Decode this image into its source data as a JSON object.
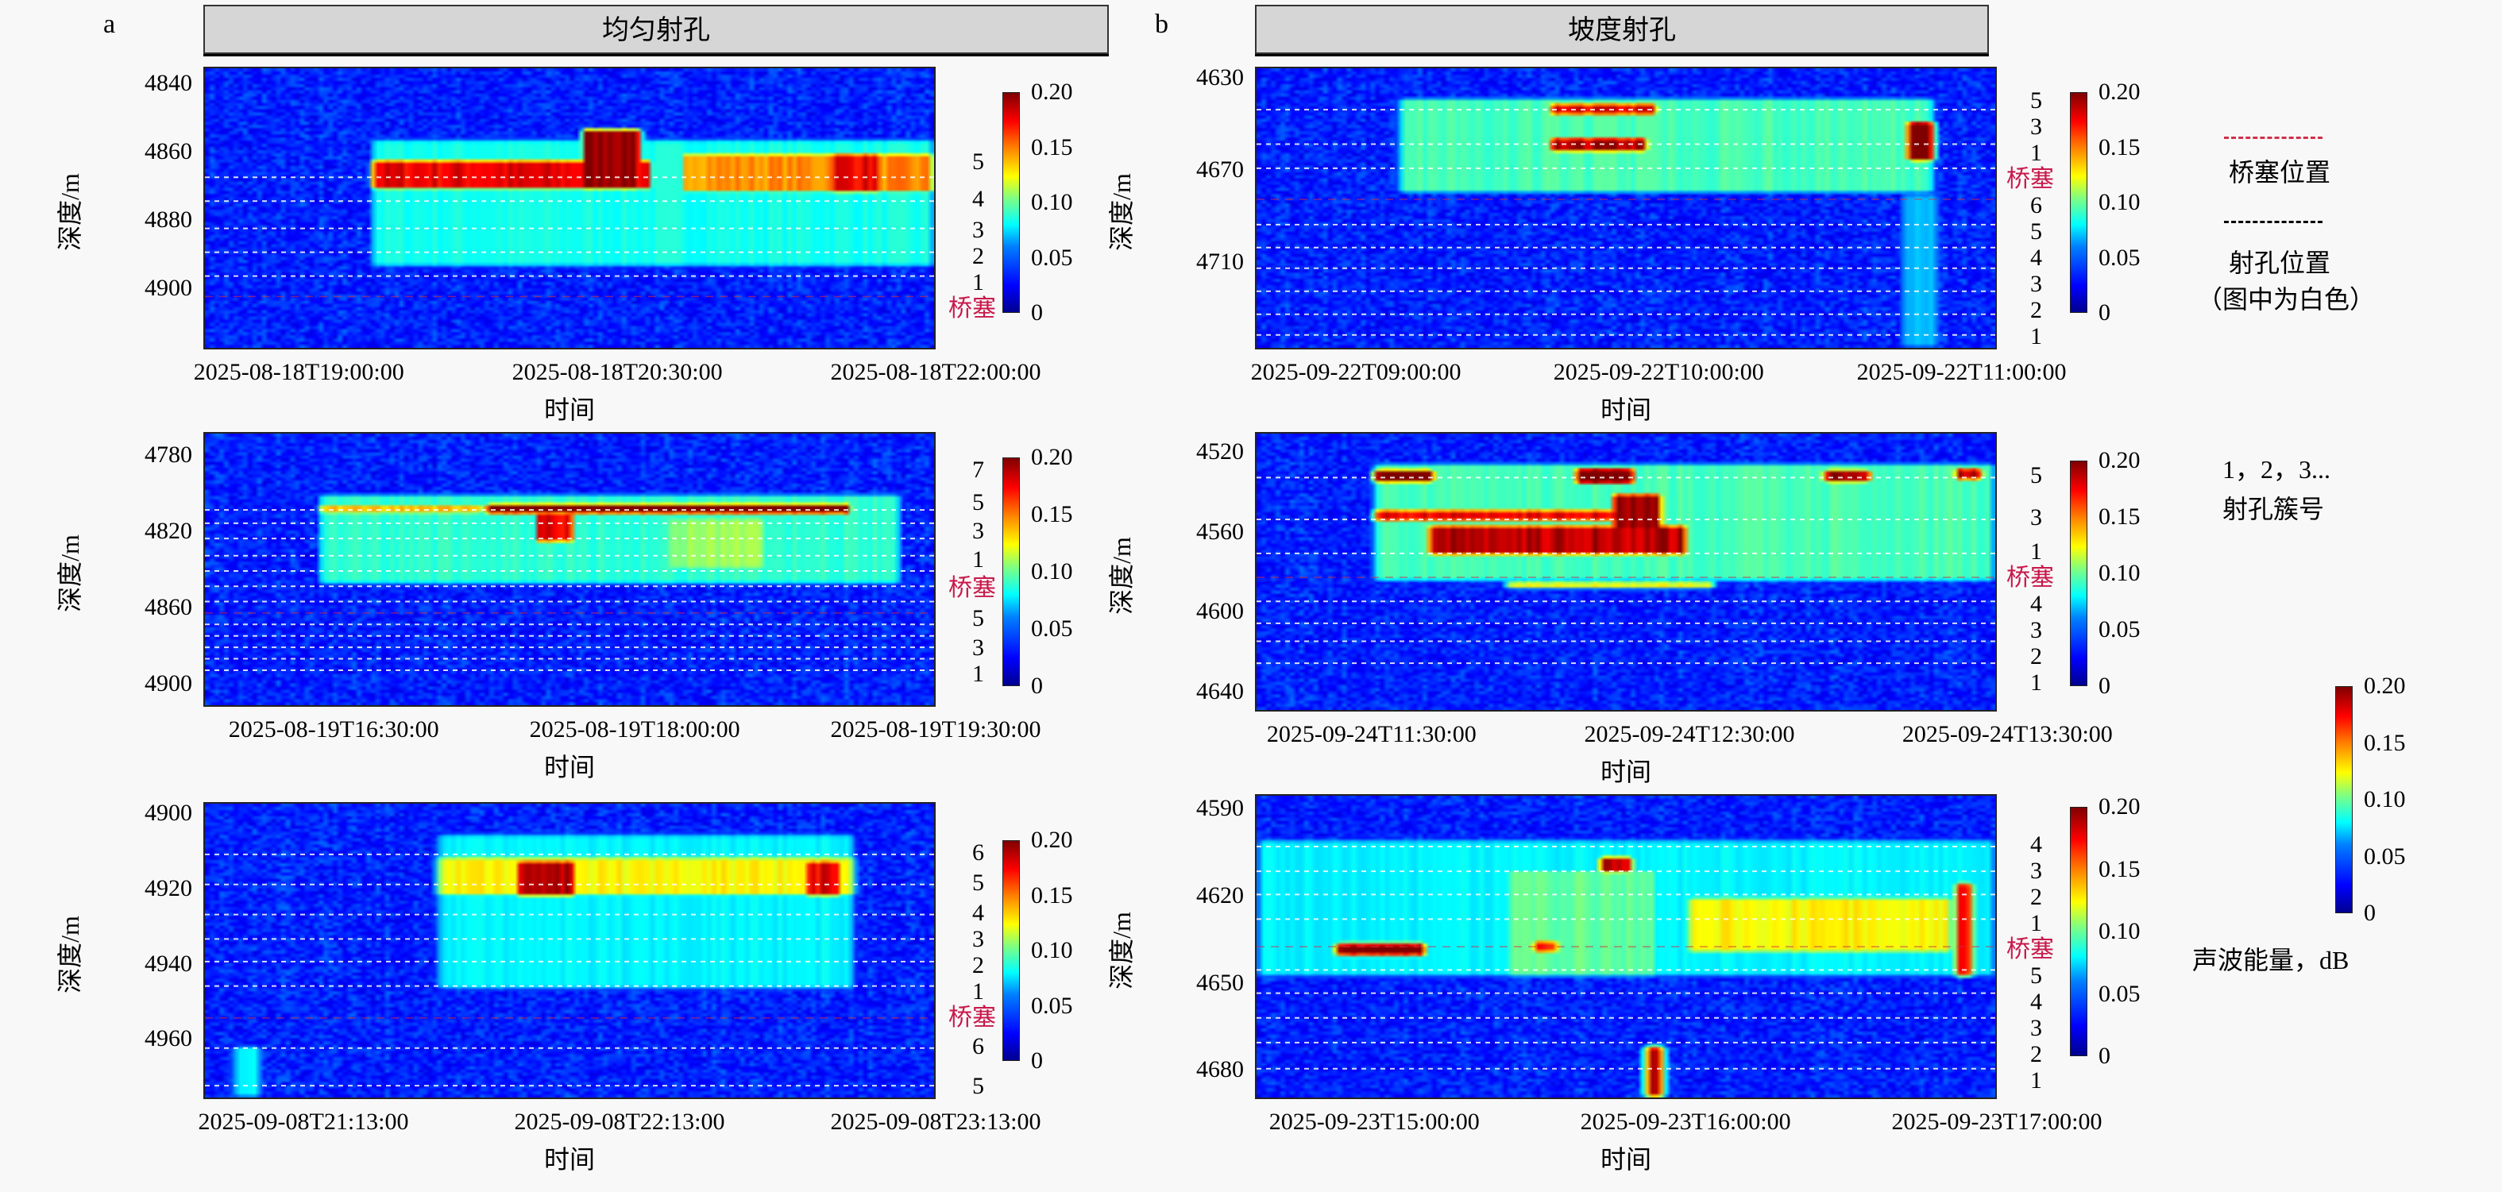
{
  "legend": {
    "plug_label": "桥塞位置",
    "perforation_label": "射孔位置",
    "perforation_note": "（图中为白色）",
    "cluster_numbers": "1，2，3...",
    "cluster_label": "射孔簇号",
    "energy_label": "声波能量，dB",
    "plug_color": "#d0304a",
    "perforation_color": "#000000"
  },
  "colorbar": {
    "min": 0,
    "max": 0.2,
    "ticks": [
      "0.20",
      "0.15",
      "0.10",
      "0.05",
      "0"
    ],
    "colormap": "jet"
  },
  "chart_data": [
    {
      "type": "heatmap",
      "id": "a1",
      "group_letter": "a",
      "group_title": "均匀射孔",
      "ylabel": "深度/m",
      "xlabel": "时间",
      "ylim": [
        4835,
        4918
      ],
      "yticks": [
        "4840",
        "4860",
        "4880",
        "4900"
      ],
      "ytick_values": [
        4840,
        4860,
        4880,
        4900
      ],
      "xticks": [
        "2025-08-18T19:00:00",
        "2025-08-18T20:30:00",
        "2025-08-18T22:00:00"
      ],
      "xtick_minutes": [
        0,
        90,
        180
      ],
      "xlim_minutes": [
        -27,
        180
      ],
      "perforation_depths": [
        4867,
        4874,
        4882,
        4889,
        4896
      ],
      "plug_depth": 4902,
      "labels": [
        {
          "t": "5",
          "d": 4863
        },
        {
          "t": "4",
          "d": 4874
        },
        {
          "t": "3",
          "d": 4883
        },
        {
          "t": "2",
          "d": 4889
        },
        {
          "t": "1",
          "d": 4895
        }
      ],
      "plug_label": "桥塞",
      "plug_label_depth": 4903,
      "hotspots": [
        [
          20,
          180,
          4856,
          4894,
          0.075
        ],
        [
          20,
          100,
          4862,
          4871,
          0.17
        ],
        [
          80,
          97,
          4853,
          4871,
          0.19
        ],
        [
          108,
          180,
          4860,
          4872,
          0.14
        ],
        [
          150,
          165,
          4860,
          4872,
          0.17
        ]
      ]
    },
    {
      "type": "heatmap",
      "id": "a2",
      "ylabel": "深度/m",
      "xlabel": "时间",
      "ylim": [
        4768,
        4912
      ],
      "yticks": [
        "4780",
        "4820",
        "4860",
        "4900"
      ],
      "ytick_values": [
        4780,
        4820,
        4860,
        4900
      ],
      "xticks": [
        "2025-08-19T16:30:00",
        "2025-08-19T18:00:00",
        "2025-08-19T19:30:00"
      ],
      "xtick_minutes": [
        0,
        90,
        180
      ],
      "xlim_minutes": [
        -39,
        180
      ],
      "perforation_depths": [
        4808,
        4815,
        4823,
        4832,
        4840,
        4848,
        4856,
        4868,
        4874,
        4880,
        4886,
        4892
      ],
      "plug_depth": 4862,
      "labels": [
        {
          "t": "7",
          "d": 4788
        },
        {
          "t": "5",
          "d": 4805
        },
        {
          "t": "3",
          "d": 4820
        },
        {
          "t": "1",
          "d": 4835
        },
        {
          "t": "5",
          "d": 4866
        },
        {
          "t": "3",
          "d": 4881
        },
        {
          "t": "1",
          "d": 4894
        }
      ],
      "plug_label": "桥塞",
      "plug_label_depth": 4850,
      "hotspots": [
        [
          -5,
          170,
          4800,
          4848,
          0.08
        ],
        [
          -5,
          45,
          4805,
          4811,
          0.13
        ],
        [
          45,
          155,
          4805,
          4811,
          0.2
        ],
        [
          60,
          72,
          4810,
          4826,
          0.17
        ],
        [
          100,
          130,
          4812,
          4840,
          0.1
        ]
      ]
    },
    {
      "type": "heatmap",
      "id": "a3",
      "ylabel": "深度/m",
      "xlabel": "时间",
      "ylim": [
        4897,
        4976
      ],
      "yticks": [
        "4900",
        "4920",
        "4940",
        "4960"
      ],
      "ytick_values": [
        4900,
        4920,
        4940,
        4960
      ],
      "xticks": [
        "2025-09-08T21:13:00",
        "2025-09-08T22:13:00",
        "2025-09-08T23:13:00"
      ],
      "xtick_minutes": [
        0,
        60,
        120
      ],
      "xlim_minutes": [
        -19,
        120
      ],
      "perforation_depths": [
        4910.5,
        4918.5,
        4926.5,
        4933,
        4939,
        4945.5,
        4962,
        4972
      ],
      "plug_depth": 4954,
      "labels": [
        {
          "t": "6",
          "d": 4910.5
        },
        {
          "t": "5",
          "d": 4918.5
        },
        {
          "t": "4",
          "d": 4926.5
        },
        {
          "t": "3",
          "d": 4933
        },
        {
          "t": "2",
          "d": 4939
        },
        {
          "t": "1",
          "d": 4945.5
        },
        {
          "t": "6",
          "d": 4962
        },
        {
          "t": "5",
          "d": 4975
        }
      ],
      "plug_label": "桥塞",
      "plug_label_depth": 4954,
      "hotspots": [
        [
          25,
          105,
          4905,
          4947,
          0.07
        ],
        [
          25,
          105,
          4911,
          4922,
          0.12
        ],
        [
          40,
          52,
          4912,
          4922,
          0.18
        ],
        [
          95,
          103,
          4912,
          4922,
          0.17
        ],
        [
          -14,
          -8,
          4962,
          4976,
          0.07
        ]
      ]
    },
    {
      "type": "heatmap",
      "id": "b1",
      "group_letter": "b",
      "group_title": "坡度射孔",
      "ylabel": "深度/m",
      "xlabel": "时间",
      "ylim": [
        4625,
        4748
      ],
      "yticks": [
        "4630",
        "4670",
        "4710"
      ],
      "ytick_values": [
        4630,
        4670,
        4710
      ],
      "xticks": [
        "2025-09-22T09:00:00",
        "2025-09-22T10:00:00",
        "2025-09-22T11:00:00"
      ],
      "xtick_minutes": [
        0,
        60,
        120
      ],
      "xlim_minutes": [
        -20,
        127
      ],
      "perforation_depths": [
        4643,
        4658,
        4668.5,
        4693,
        4703,
        4712,
        4722,
        4732,
        4741
      ],
      "plug_depth": 4682,
      "labels": [
        {
          "t": "5",
          "d": 4643
        },
        {
          "t": "3",
          "d": 4658
        },
        {
          "t": "1",
          "d": 4668.5
        },
        {
          "t": "6",
          "d": 4693
        },
        {
          "t": "5",
          "d": 4703
        },
        {
          "t": "4",
          "d": 4712
        },
        {
          "t": "3",
          "d": 4722
        },
        {
          "t": "2",
          "d": 4732
        },
        {
          "t": "1",
          "d": 4741
        }
      ],
      "plug_label": "桥塞",
      "plug_label_depth": 4682,
      "hotspots": [
        [
          8,
          115,
          4638,
          4680,
          0.085
        ],
        [
          38,
          60,
          4640,
          4646,
          0.17
        ],
        [
          38,
          58,
          4655,
          4662,
          0.18
        ],
        [
          109,
          115,
          4648,
          4666,
          0.2
        ],
        [
          108,
          116,
          4680,
          4748,
          0.06
        ]
      ]
    },
    {
      "type": "heatmap",
      "id": "b2",
      "ylabel": "深度/m",
      "xlabel": "时间",
      "ylim": [
        4510,
        4650
      ],
      "yticks": [
        "4520",
        "4560",
        "4600",
        "4640"
      ],
      "ytick_values": [
        4520,
        4560,
        4600,
        4640
      ],
      "xticks": [
        "2025-09-24T11:30:00",
        "2025-09-24T12:30:00",
        "2025-09-24T13:30:00"
      ],
      "xtick_minutes": [
        0,
        60,
        120
      ],
      "xlim_minutes": [
        -22,
        118
      ],
      "perforation_depths": [
        4532,
        4553,
        4570,
        4594,
        4605,
        4614,
        4625
      ],
      "plug_depth": 4582,
      "labels": [
        {
          "t": "5",
          "d": 4532
        },
        {
          "t": "3",
          "d": 4553
        },
        {
          "t": "1",
          "d": 4570
        },
        {
          "t": "4",
          "d": 4594
        },
        {
          "t": "3",
          "d": 4605
        },
        {
          "t": "2",
          "d": 4614
        },
        {
          "t": "1",
          "d": 4625
        }
      ],
      "plug_label": "桥塞",
      "plug_label_depth": 4582,
      "hotspots": [
        [
          0,
          118,
          4525,
          4585,
          0.085
        ],
        [
          0,
          12,
          4528,
          4535,
          0.2
        ],
        [
          0,
          55,
          4548,
          4555,
          0.17
        ],
        [
          10,
          60,
          4556,
          4572,
          0.18
        ],
        [
          38,
          50,
          4527,
          4536,
          0.2
        ],
        [
          45,
          55,
          4540,
          4560,
          0.19
        ],
        [
          85,
          95,
          4528,
          4535,
          0.18
        ],
        [
          110,
          116,
          4527,
          4534,
          0.18
        ],
        [
          25,
          65,
          4585,
          4588,
          0.16
        ]
      ]
    },
    {
      "type": "heatmap",
      "id": "b3",
      "ylabel": "深度/m",
      "xlabel": "时间",
      "ylim": [
        4585,
        4690
      ],
      "yticks": [
        "4590",
        "4620",
        "4650",
        "4680"
      ],
      "ytick_values": [
        4590,
        4620,
        4650,
        4680
      ],
      "xticks": [
        "2025-09-23T15:00:00",
        "2025-09-23T16:00:00",
        "2025-09-23T17:00:00"
      ],
      "xtick_minutes": [
        0,
        60,
        120
      ],
      "xlim_minutes": [
        -23,
        120
      ],
      "perforation_depths": [
        4602.5,
        4611,
        4619,
        4627.5,
        4645,
        4653,
        4661.5,
        4670,
        4679
      ],
      "plug_depth": 4637,
      "labels": [
        {
          "t": "4",
          "d": 4602.5
        },
        {
          "t": "3",
          "d": 4611
        },
        {
          "t": "2",
          "d": 4619
        },
        {
          "t": "1",
          "d": 4627.5
        },
        {
          "t": "5",
          "d": 4645
        },
        {
          "t": "4",
          "d": 4653
        },
        {
          "t": "3",
          "d": 4661.5
        },
        {
          "t": "2",
          "d": 4670
        },
        {
          "t": "1",
          "d": 4679
        }
      ],
      "plug_label": "桥塞",
      "plug_label_depth": 4637,
      "hotspots": [
        [
          -23,
          120,
          4600,
          4648,
          0.07
        ],
        [
          -8,
          10,
          4636,
          4641,
          0.2
        ],
        [
          25,
          55,
          4610,
          4648,
          0.09
        ],
        [
          30,
          36,
          4635,
          4640,
          0.16
        ],
        [
          43,
          50,
          4606,
          4612,
          0.18
        ],
        [
          60,
          112,
          4620,
          4640,
          0.12
        ],
        [
          52,
          56,
          4672,
          4690,
          0.18
        ],
        [
          112,
          116,
          4615,
          4648,
          0.17
        ]
      ]
    }
  ]
}
